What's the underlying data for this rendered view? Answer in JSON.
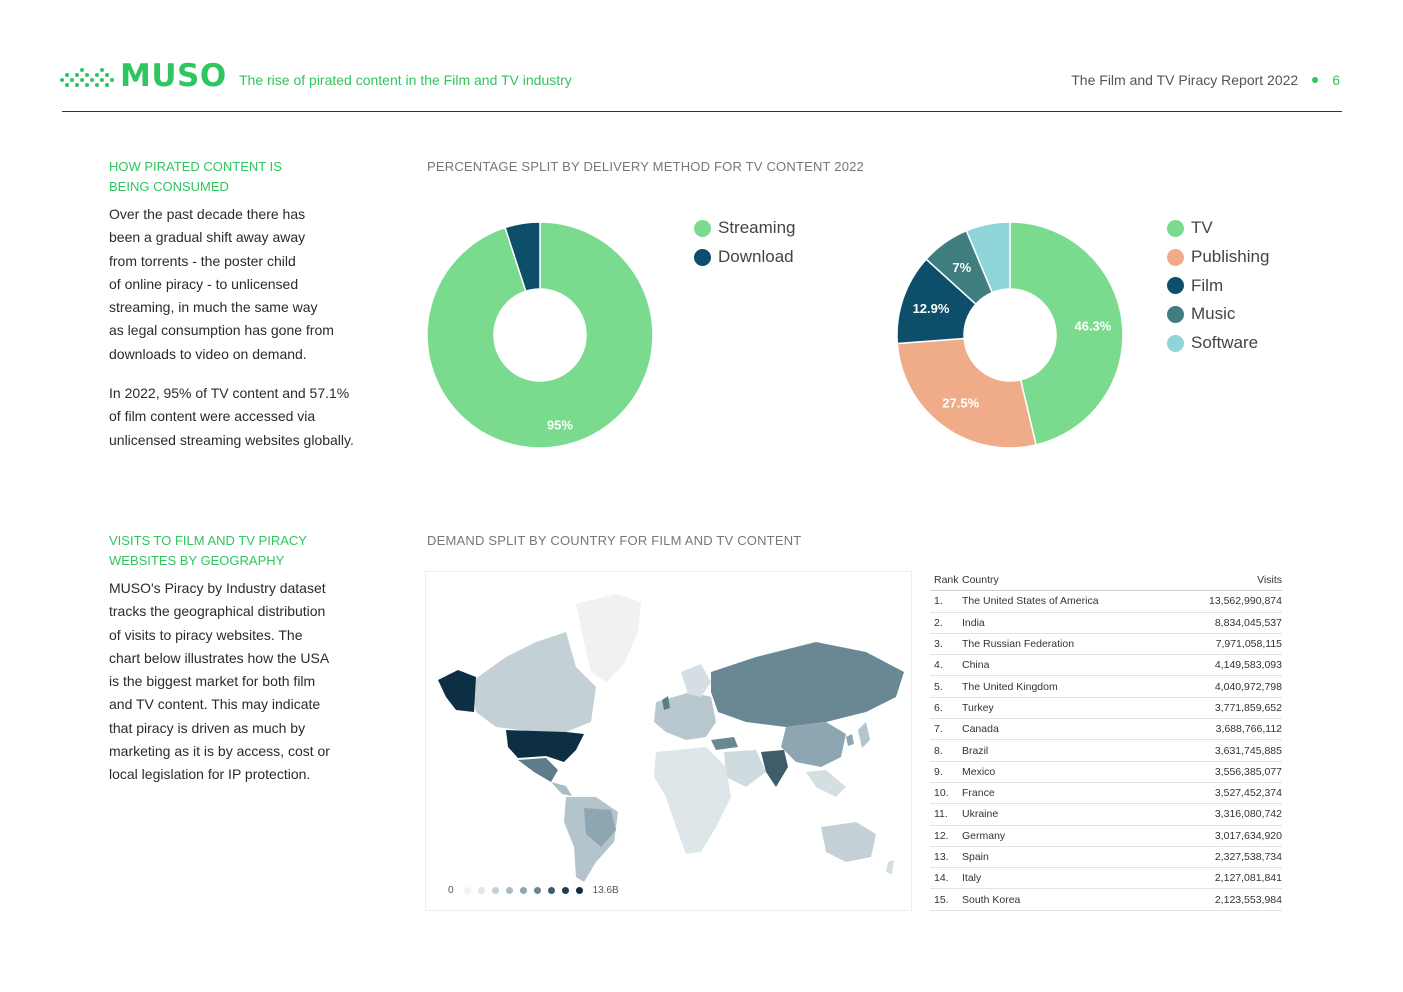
{
  "header": {
    "logo_text": "MUSO",
    "subtitle": "The rise of pirated content in the Film and TV industry",
    "report_title": "The Film and TV Piracy Report 2022",
    "page_number": "6",
    "brand_color": "#2fc55f"
  },
  "section1": {
    "title_line1": "HOW PIRATED CONTENT IS",
    "title_line2": "BEING CONSUMED",
    "paragraph1_lines": [
      "Over the past decade there has",
      "been a gradual shift away away",
      "from torrents - the poster child",
      "of online piracy - to unlicensed",
      "streaming, in much the same way",
      "as legal consumption has gone from",
      "downloads to video on demand."
    ],
    "paragraph2_lines": [
      "In 2022, 95% of TV content and 57.1%",
      "of film content were accessed via",
      "unlicensed streaming websites globally."
    ],
    "chart_caption": "PERCENTAGE SPLIT BY DELIVERY METHOD FOR TV CONTENT 2022"
  },
  "section2": {
    "title_line1": "VISITS TO FILM AND TV PIRACY",
    "title_line2": "WEBSITES BY GEOGRAPHY",
    "paragraph_lines": [
      "MUSO's Piracy by Industry dataset",
      "tracks the geographical distribution",
      "of visits to piracy websites. The",
      "chart below illustrates how the USA",
      "is the biggest market for both film",
      "and TV content. This may indicate",
      "that piracy is driven as much by",
      "marketing as it is by access, cost or",
      "local legislation for IP protection."
    ],
    "chart_caption": "DEMAND SPLIT BY COUNTRY FOR FILM AND TV CONTENT",
    "map_scale": {
      "min_label": "0",
      "max_label": "13.6B"
    }
  },
  "chart_data": [
    {
      "type": "pie",
      "style": "donut",
      "title": "",
      "series": [
        {
          "name": "Streaming",
          "value": 95,
          "label": "95%",
          "color": "#7adb8e"
        },
        {
          "name": "Download",
          "value": 5,
          "label": "",
          "color": "#0d4f6b"
        }
      ],
      "legend_position": "right"
    },
    {
      "type": "pie",
      "style": "donut",
      "title": "",
      "series": [
        {
          "name": "TV",
          "value": 46.3,
          "label": "46.3%",
          "color": "#7adb8e"
        },
        {
          "name": "Publishing",
          "value": 27.5,
          "label": "27.5%",
          "color": "#f0ab89"
        },
        {
          "name": "Film",
          "value": 12.9,
          "label": "12.9%",
          "color": "#0d4f6b"
        },
        {
          "name": "Music",
          "value": 7,
          "label": "7%",
          "color": "#3f7d7f"
        },
        {
          "name": "Software",
          "value": 6.3,
          "label": "",
          "color": "#8fd5d8"
        }
      ],
      "legend_position": "right"
    },
    {
      "type": "table",
      "columns": [
        "Rank",
        "Country",
        "Visits"
      ],
      "rows": [
        [
          "1.",
          "The United States of America",
          "13,562,990,874"
        ],
        [
          "2.",
          "India",
          "8,834,045,537"
        ],
        [
          "3.",
          "The Russian Federation",
          "7,971,058,115"
        ],
        [
          "4.",
          "China",
          "4,149,583,093"
        ],
        [
          "5.",
          "The United Kingdom",
          "4,040,972,798"
        ],
        [
          "6.",
          "Turkey",
          "3,771,859,652"
        ],
        [
          "7.",
          "Canada",
          "3,688,766,112"
        ],
        [
          "8.",
          "Brazil",
          "3,631,745,885"
        ],
        [
          "9.",
          "Mexico",
          "3,556,385,077"
        ],
        [
          "10.",
          "France",
          "3,527,452,374"
        ],
        [
          "11.",
          "Ukraine",
          "3,316,080,742"
        ],
        [
          "12.",
          "Germany",
          "3,017,634,920"
        ],
        [
          "13.",
          "Spain",
          "2,327,538,734"
        ],
        [
          "14.",
          "Italy",
          "2,127,081,841"
        ],
        [
          "15.",
          "South Korea",
          "2,123,553,984"
        ]
      ]
    }
  ]
}
